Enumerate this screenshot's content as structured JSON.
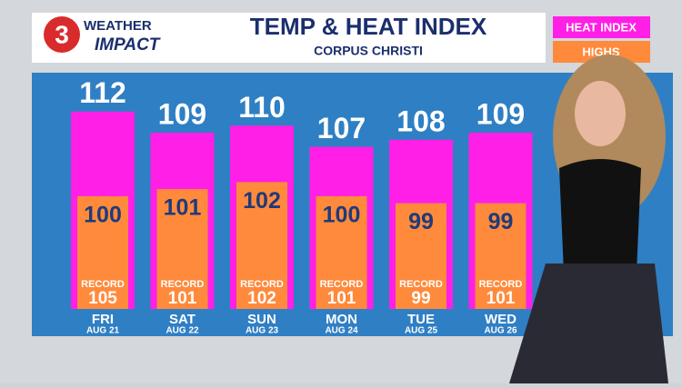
{
  "logo": {
    "number": "3",
    "line1": "WEATHER",
    "line2": "IMPACT"
  },
  "chart_data": {
    "type": "bar",
    "title": "TEMP & HEAT INDEX",
    "subtitle": "CORPUS CHRISTI",
    "categories": [
      "FRI",
      "SAT",
      "SUN",
      "MON",
      "TUE",
      "WED"
    ],
    "dates": [
      "AUG 21",
      "AUG 22",
      "AUG 23",
      "AUG 24",
      "AUG 25",
      "AUG 26"
    ],
    "series": [
      {
        "name": "HEAT INDEX",
        "color": "#ff1fe6",
        "values": [
          112,
          109,
          110,
          107,
          108,
          109
        ]
      },
      {
        "name": "HIGHS",
        "color": "#ff8a3c",
        "values": [
          100,
          101,
          102,
          100,
          99,
          99
        ]
      }
    ],
    "record_label": "RECORD",
    "records": [
      105,
      101,
      102,
      101,
      99,
      101
    ],
    "ylim": [
      84,
      117
    ],
    "legend": "top-right"
  }
}
